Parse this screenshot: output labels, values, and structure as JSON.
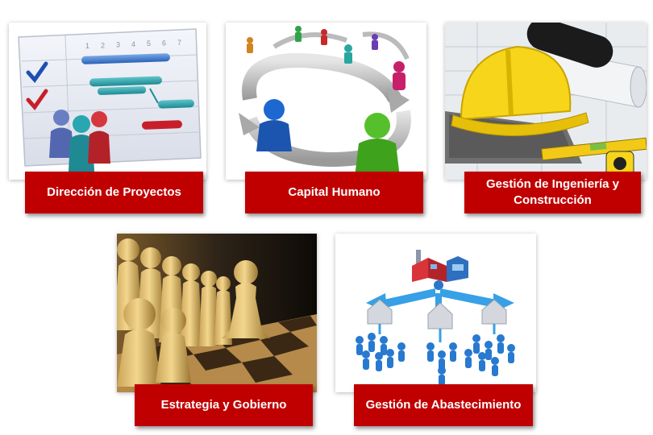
{
  "tiles": [
    {
      "id": "direccion",
      "label": "Dirección de Proyectos",
      "image": "gantt-chart-people-illustration"
    },
    {
      "id": "capital",
      "label": "Capital Humano",
      "image": "people-circular-arrows-illustration"
    },
    {
      "id": "ingenieria",
      "label_line1": "Gestión de Ingeniería y",
      "label_line2": "Construcción",
      "image": "hard-hat-blueprints-photo"
    },
    {
      "id": "estrategia",
      "label": "Estrategia y Gobierno",
      "image": "chess-pawns-photo"
    },
    {
      "id": "abastecimiento",
      "label": "Gestión de Abastecimiento",
      "image": "factory-distribution-network-illustration"
    }
  ],
  "gantt": {
    "ticks": [
      "1",
      "2",
      "3",
      "4",
      "5",
      "6",
      "7"
    ]
  },
  "colors": {
    "label_bg": "#c00000",
    "label_text": "#ffffff"
  }
}
